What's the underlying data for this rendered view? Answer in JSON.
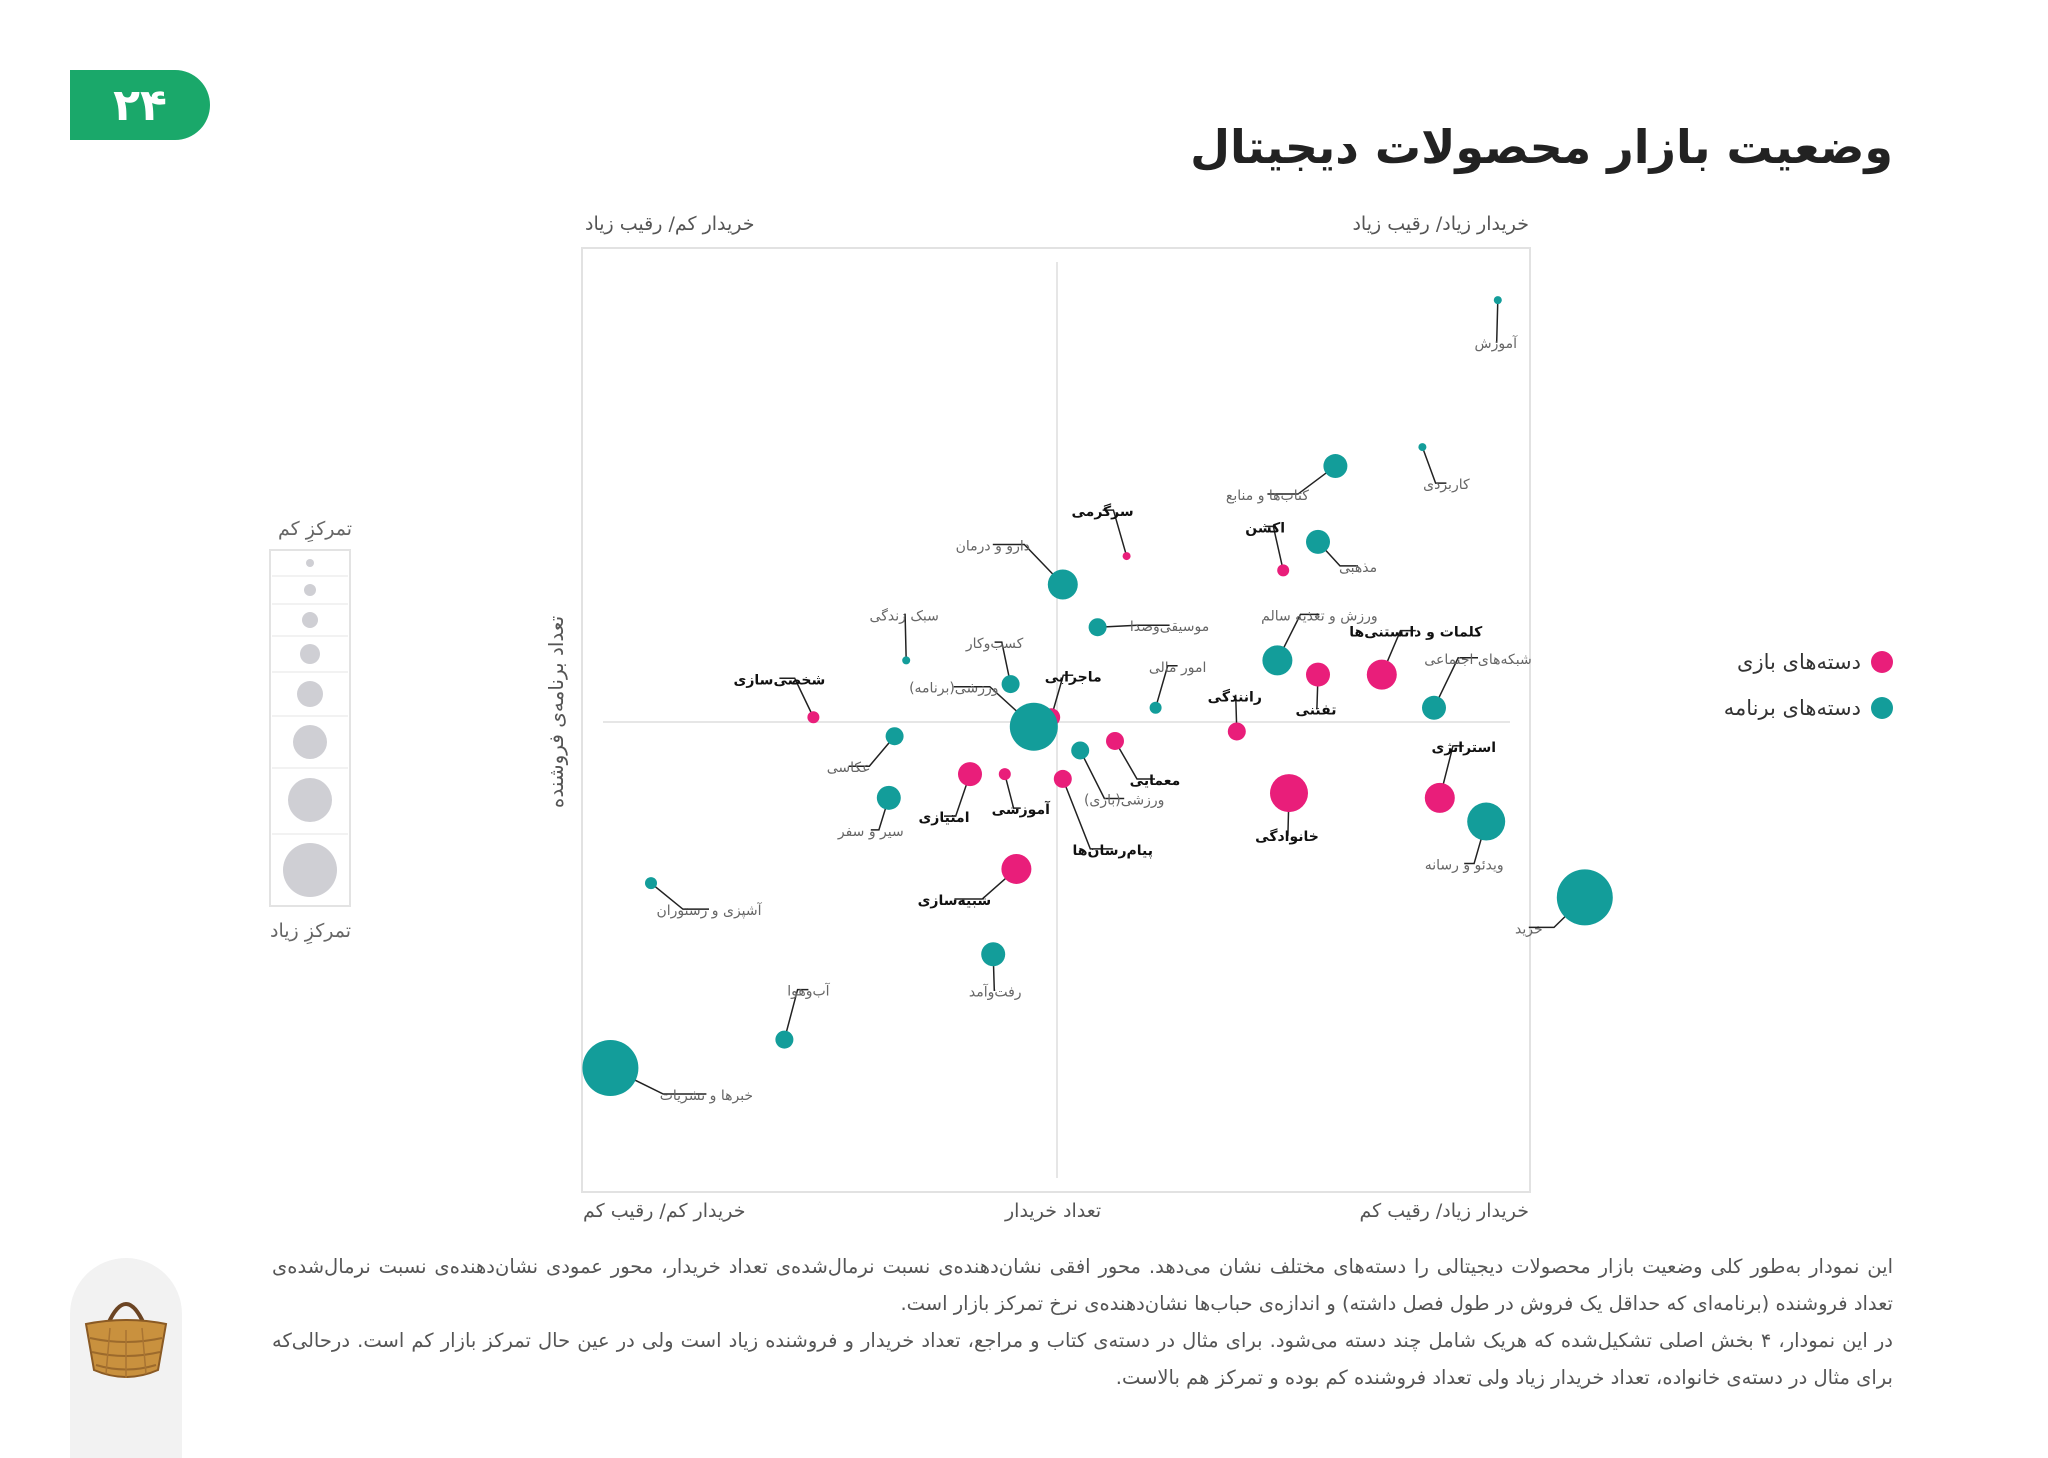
{
  "page": {
    "number": "۲۴",
    "title": "وضعیت بازار محصولات دیجیتال"
  },
  "colors": {
    "game": "#e91e7a",
    "app": "#139d9a",
    "neutral": "#cfcfd4"
  },
  "icons": {
    "logo": "basket-icon"
  },
  "legend": {
    "games": "دسته‌های بازی",
    "apps": "دسته‌های برنامه"
  },
  "size_legend": {
    "top": "تمرکزِ کم",
    "bottom": "تمرکزِ زیاد"
  },
  "description": {
    "p1": "این نمودار به‌طور کلی وضعیت بازار محصولات دیجیتالی را دسته‌های مختلف نشان می‌دهد. محور افقی نشان‌دهنده‌ی نسبت نرمال‌شده‌ی تعداد خریدار، محور عمودی نشان‌دهنده‌ی نسبت نرمال‌شده‌ی تعداد فروشنده (برنامه‌ای که حداقل یک فروش در طول فصل داشته) و اندازه‌ی حباب‌ها نشان‌دهنده‌ی نرخ تمرکز بازار است.",
    "p2": "در این نمودار، ۴ بخش اصلی تشکیل‌شده که هریک شامل چند دسته می‌شود. برای مثال در دسته‌ی کتاب و مراجع، تعداد خریدار و فروشنده زیاد است ولی در عین حال تمرکز بازار کم است. درحالی‌که برای مثال در دسته‌ی خانواده، تعداد خریدار زیاد ولی تعداد فروشنده کم بوده و تمرکز هم بالاست."
  },
  "chart_data": {
    "type": "scatter",
    "subtype": "bubble",
    "xlabel": "تعداد خریدار",
    "ylabel": "تعداد برنامه‌ی فروشنده",
    "xlim": [
      -1,
      1
    ],
    "ylim": [
      -1,
      1
    ],
    "quadrants": {
      "top_left": "خریدار کم/ رقیب زیاد",
      "top_right": "خریدار زیاد/ رقیب زیاد",
      "bottom_left": "خریدار کم/ رقیب کم",
      "bottom_right": "خریدار زیاد/ رقیب کم"
    },
    "size_meaning": "market concentration (larger = more concentrated)",
    "series": [
      {
        "group": "games",
        "points": [
          {
            "label": "سرگرمی",
            "x": 0.12,
            "y": 0.35,
            "size": 1
          },
          {
            "label": "اکشن",
            "x": 0.39,
            "y": 0.32,
            "size": 2
          },
          {
            "label": "کلمات و دانستنی‌ها",
            "x": 0.56,
            "y": 0.1,
            "size": 5
          },
          {
            "label": "رانندگی",
            "x": 0.31,
            "y": -0.02,
            "size": 3
          },
          {
            "label": "تفننی",
            "x": 0.45,
            "y": 0.1,
            "size": 4
          },
          {
            "label": "ماجرایی",
            "x": -0.01,
            "y": 0.01,
            "size": 3
          },
          {
            "label": "شخصی‌سازی",
            "x": -0.42,
            "y": 0.01,
            "size": 2
          },
          {
            "label": "معمایی",
            "x": 0.1,
            "y": -0.04,
            "size": 3
          },
          {
            "label": "امتیازی",
            "x": -0.15,
            "y": -0.11,
            "size": 4
          },
          {
            "label": "آموزشی",
            "x": -0.09,
            "y": -0.11,
            "size": 2
          },
          {
            "label": "پیام‌رسان‌ها",
            "x": 0.01,
            "y": -0.12,
            "size": 3
          },
          {
            "label": "خانوادگی",
            "x": 0.4,
            "y": -0.15,
            "size": 6
          },
          {
            "label": "استراتژی",
            "x": 0.66,
            "y": -0.16,
            "size": 5
          },
          {
            "label": "شبیه‌سازی",
            "x": -0.07,
            "y": -0.31,
            "size": 5
          }
        ]
      },
      {
        "group": "apps",
        "points": [
          {
            "label": "آموزش",
            "x": 0.76,
            "y": 0.89,
            "size": 1
          },
          {
            "label": "کاربردی",
            "x": 0.63,
            "y": 0.58,
            "size": 1
          },
          {
            "label": "کتاب‌ها و منابع",
            "x": 0.48,
            "y": 0.54,
            "size": 4
          },
          {
            "label": "مذهبی",
            "x": 0.45,
            "y": 0.38,
            "size": 4
          },
          {
            "label": "دارو و درمان",
            "x": 0.01,
            "y": 0.29,
            "size": 5
          },
          {
            "label": "موسیقی‌وصدا",
            "x": 0.07,
            "y": 0.2,
            "size": 3
          },
          {
            "label": "سبک زندگی",
            "x": -0.26,
            "y": 0.13,
            "size": 1
          },
          {
            "label": "ورزش و تغذیه سالم",
            "x": 0.38,
            "y": 0.13,
            "size": 5
          },
          {
            "label": "شبکه‌های اجتماعی",
            "x": 0.65,
            "y": 0.03,
            "size": 4
          },
          {
            "label": "کسب‌وکار",
            "x": -0.08,
            "y": 0.08,
            "size": 3
          },
          {
            "label": "امور مالی",
            "x": 0.17,
            "y": 0.03,
            "size": 2
          },
          {
            "label": "ورزشی(برنامه)",
            "x": -0.04,
            "y": -0.01,
            "size": 7
          },
          {
            "label": "عکاسی",
            "x": -0.28,
            "y": -0.03,
            "size": 3
          },
          {
            "label": "ورزشی(بازی)",
            "x": 0.04,
            "y": -0.06,
            "size": 3
          },
          {
            "label": "سیر و سفر",
            "x": -0.29,
            "y": -0.16,
            "size": 4
          },
          {
            "label": "ویدئو و رسانه",
            "x": 0.74,
            "y": -0.21,
            "size": 6
          },
          {
            "label": "خرید",
            "x": 0.91,
            "y": -0.37,
            "size": 8
          },
          {
            "label": "آشپزی و رستوران",
            "x": -0.7,
            "y": -0.34,
            "size": 2
          },
          {
            "label": "رفت‌وآمد",
            "x": -0.11,
            "y": -0.49,
            "size": 4
          },
          {
            "label": "آب‌وهوا",
            "x": -0.47,
            "y": -0.67,
            "size": 3
          },
          {
            "label": "خبرها و نشریات",
            "x": -0.77,
            "y": -0.73,
            "size": 8
          }
        ]
      }
    ]
  }
}
